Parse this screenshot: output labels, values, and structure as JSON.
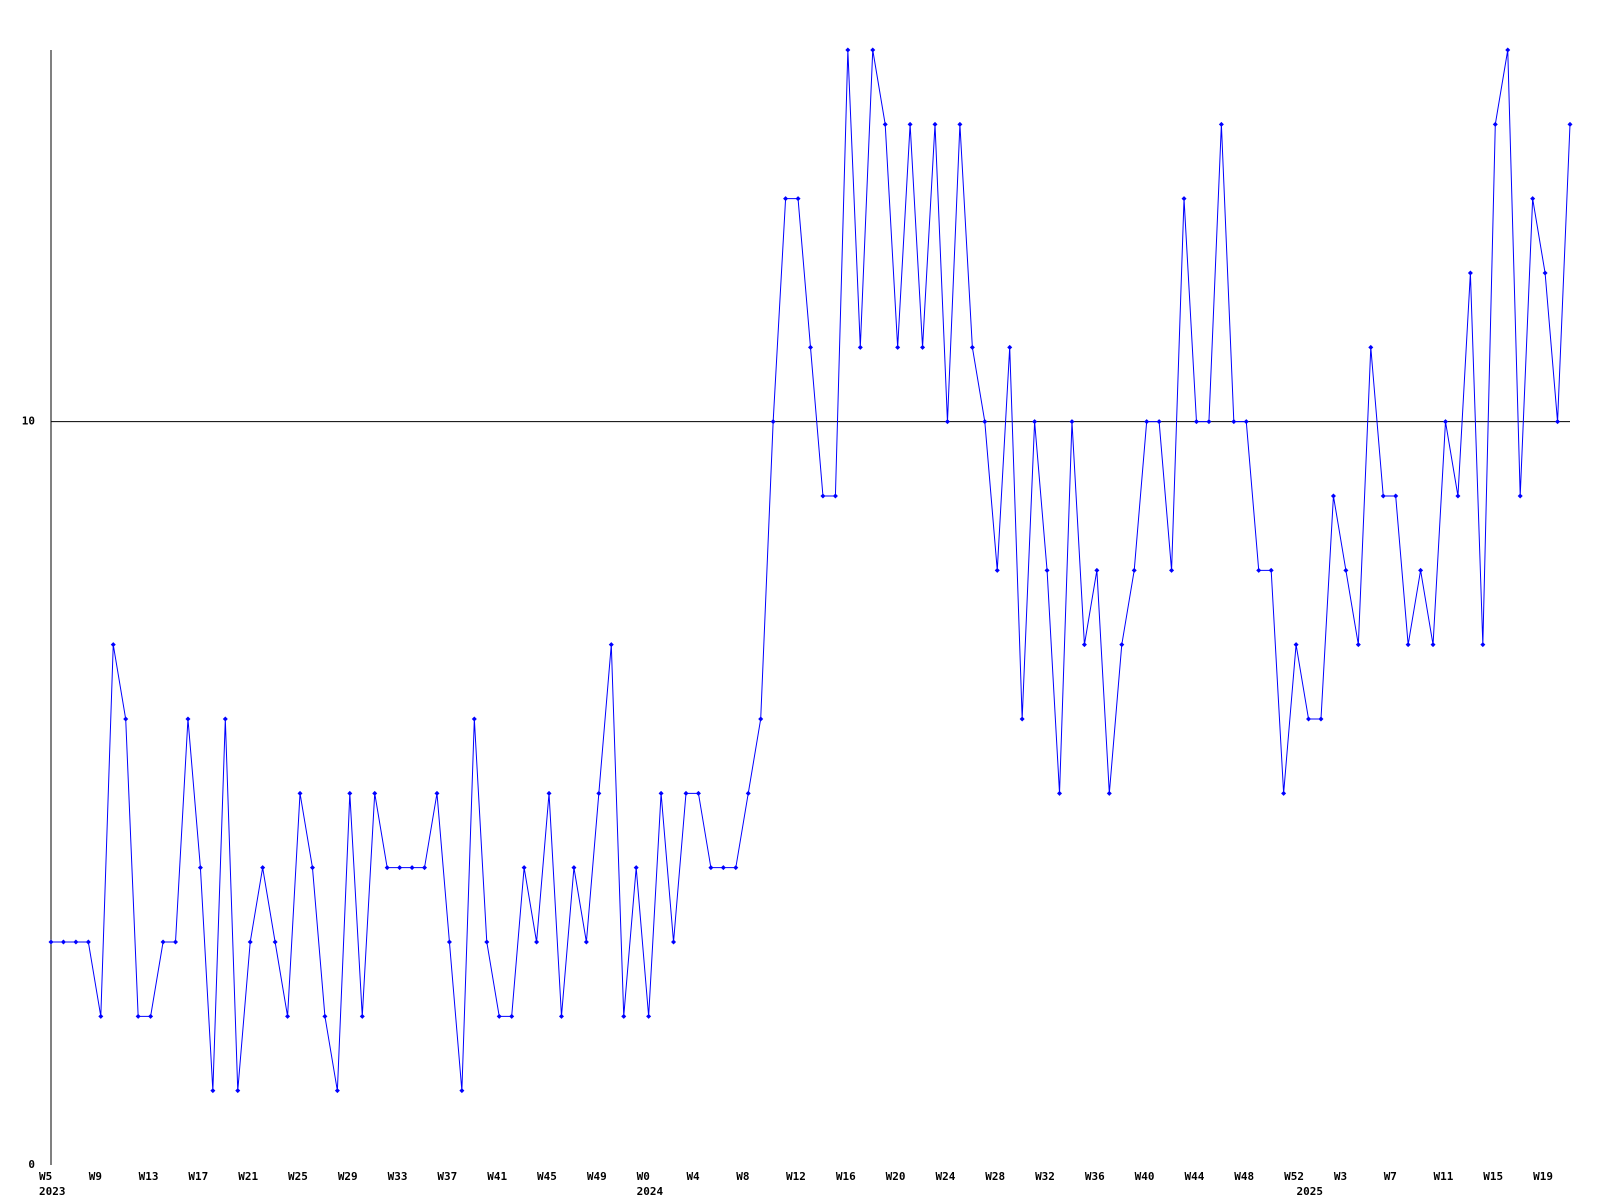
{
  "chart_data": {
    "type": "line",
    "categories": [
      "W5",
      null,
      null,
      null,
      "W9",
      null,
      null,
      null,
      "W13",
      null,
      null,
      null,
      "W17",
      null,
      null,
      null,
      "W21",
      null,
      null,
      null,
      "W25",
      null,
      null,
      null,
      "W29",
      null,
      null,
      null,
      "W33",
      null,
      null,
      null,
      "W37",
      null,
      null,
      null,
      "W41",
      null,
      null,
      null,
      "W45",
      null,
      null,
      null,
      "W49",
      null,
      null,
      null,
      "W0",
      null,
      null,
      null,
      "W4",
      null,
      null,
      null,
      "W8",
      null,
      null,
      null,
      "W12",
      null,
      null,
      null,
      "W16",
      null,
      null,
      null,
      "W20",
      null,
      null,
      null,
      "W24",
      null,
      null,
      null,
      "W28",
      null,
      null,
      null,
      "W32",
      null,
      null,
      null,
      "W36",
      null,
      null,
      null,
      "W40",
      null,
      null,
      null,
      "W44",
      null,
      null,
      null,
      "W48",
      null,
      null,
      null,
      "W52",
      null,
      null,
      null,
      "W3",
      null,
      null,
      null,
      "W7",
      null,
      null,
      null,
      "W11",
      null,
      null,
      null,
      "W15",
      null,
      null,
      null,
      "W19",
      null,
      null
    ],
    "category_years": [
      "2023",
      null,
      null,
      null,
      null,
      null,
      null,
      null,
      null,
      null,
      null,
      null,
      null,
      null,
      null,
      null,
      null,
      null,
      null,
      null,
      null,
      null,
      null,
      null,
      null,
      null,
      null,
      null,
      null,
      null,
      null,
      null,
      null,
      null,
      null,
      null,
      null,
      null,
      null,
      null,
      null,
      null,
      null,
      null,
      null,
      null,
      null,
      null,
      "2024",
      null,
      null,
      null,
      null,
      null,
      null,
      null,
      null,
      null,
      null,
      null,
      null,
      null,
      null,
      null,
      null,
      null,
      null,
      null,
      null,
      null,
      null,
      null,
      null,
      null,
      null,
      null,
      null,
      null,
      null,
      null,
      null,
      null,
      null,
      null,
      null,
      null,
      null,
      null,
      null,
      null,
      null,
      null,
      null,
      null,
      null,
      null,
      null,
      null,
      null,
      null,
      null,
      "2025",
      null,
      null,
      null,
      null,
      null,
      null,
      null,
      null,
      null,
      null,
      null,
      null,
      null,
      null,
      null,
      null,
      null,
      null,
      null,
      null,
      null
    ],
    "values": [
      3,
      3,
      3,
      3,
      2,
      7,
      6,
      2,
      2,
      3,
      3,
      6,
      4,
      1,
      6,
      1,
      3,
      4,
      3,
      2,
      5,
      4,
      2,
      1,
      5,
      2,
      5,
      4,
      4,
      4,
      4,
      5,
      3,
      1,
      6,
      3,
      2,
      2,
      4,
      3,
      5,
      2,
      4,
      3,
      5,
      7,
      2,
      4,
      2,
      5,
      3,
      5,
      5,
      4,
      4,
      4,
      5,
      6,
      10,
      13,
      13,
      11,
      9,
      9,
      15,
      11,
      15,
      14,
      11,
      14,
      11,
      14,
      10,
      14,
      11,
      10,
      8,
      11,
      6,
      10,
      8,
      5,
      10,
      7,
      8,
      5,
      7,
      8,
      10,
      10,
      8,
      13,
      10,
      10,
      14,
      10,
      10,
      8,
      8,
      5,
      7,
      6,
      6,
      9,
      8,
      7,
      11,
      9,
      9,
      7,
      8,
      7,
      10,
      9,
      12,
      7,
      14,
      15,
      9,
      13,
      12,
      10,
      14
    ],
    "color": "#0000ff",
    "ylim": [
      0,
      15
    ],
    "yticks": [
      0,
      10
    ],
    "grid": true
  }
}
